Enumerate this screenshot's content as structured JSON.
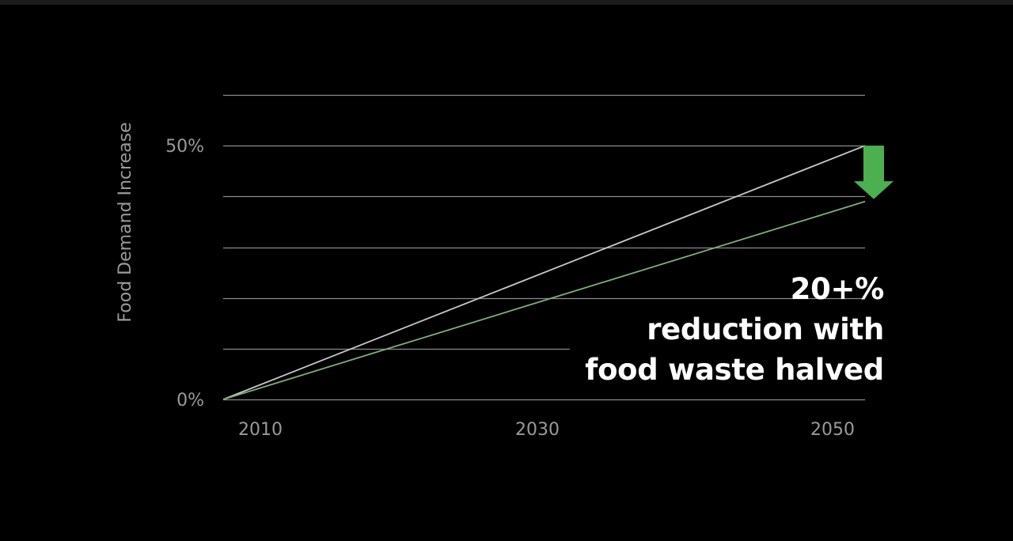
{
  "chart_data": {
    "type": "line",
    "ylabel": "Food Demand Increase",
    "xlabel": "",
    "x_ticks": [
      "2010",
      "2030",
      "2050"
    ],
    "y_ticks": [
      "0%",
      "50%"
    ],
    "xlim": [
      2008,
      2052
    ],
    "ylim": [
      0,
      60
    ],
    "grid": true,
    "series": [
      {
        "x": [
          2008,
          2052
        ],
        "values": [
          0,
          50
        ],
        "color": "#c8c8c8"
      },
      {
        "x": [
          2008,
          2052
        ],
        "values": [
          0,
          39
        ],
        "color": "#7fae7a"
      }
    ],
    "arrow": {
      "x": 2052,
      "from": 50,
      "to": 39,
      "color": "#4caf50"
    },
    "annotation": [
      "20+%",
      "reduction with",
      "food waste halved"
    ],
    "colors": {
      "background": "#000000",
      "grid": "#8a8a8a",
      "axis_text": "#9a9a9a",
      "annotation": "#ffffff"
    }
  }
}
